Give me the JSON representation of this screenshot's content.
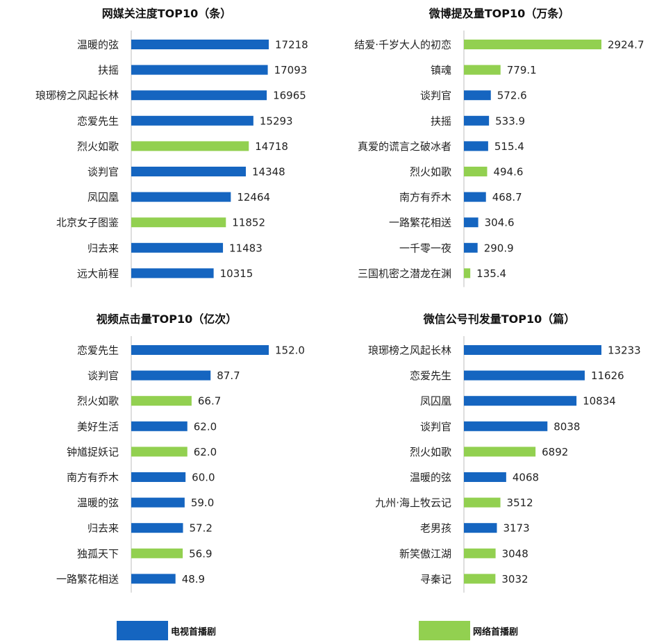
{
  "colors": {
    "tv": "#1565c0",
    "web": "#92d050",
    "axis": "#bdbdbd"
  },
  "legend": [
    {
      "key": "tv",
      "label": "电视首播剧",
      "color": "#1565c0"
    },
    {
      "key": "web",
      "label": "网络首播剧",
      "color": "#92d050"
    }
  ],
  "chart_data": [
    {
      "type": "bar",
      "orientation": "horizontal",
      "title": "网媒关注度TOP10（条）",
      "categories": [
        "温暖的弦",
        "扶摇",
        "琅琊榜之风起长林",
        "恋爱先生",
        "烈火如歌",
        "谈判官",
        "凤囚凰",
        "北京女子图鉴",
        "归去来",
        "远大前程"
      ],
      "values": [
        17218,
        17093,
        16965,
        15293,
        14718,
        14348,
        12464,
        11852,
        11483,
        10315
      ],
      "value_labels": [
        "17218",
        "17093",
        "16965",
        "15293",
        "14718",
        "14348",
        "12464",
        "11852",
        "11483",
        "10315"
      ],
      "types": [
        "tv",
        "tv",
        "tv",
        "tv",
        "web",
        "tv",
        "tv",
        "web",
        "tv",
        "tv"
      ],
      "xlim": [
        0,
        17218
      ],
      "grid": false
    },
    {
      "type": "bar",
      "orientation": "horizontal",
      "title": "微博提及量TOP10（万条）",
      "categories": [
        "结爱·千岁大人的初恋",
        "镇魂",
        "谈判官",
        "扶摇",
        "真爱的谎言之破冰者",
        "烈火如歌",
        "南方有乔木",
        "一路繁花相送",
        "一千零一夜",
        "三国机密之潜龙在渊"
      ],
      "values": [
        2924.7,
        779.1,
        572.6,
        533.9,
        515.4,
        494.6,
        468.7,
        304.6,
        290.9,
        135.4
      ],
      "value_labels": [
        "2924.7",
        "779.1",
        "572.6",
        "533.9",
        "515.4",
        "494.6",
        "468.7",
        "304.6",
        "290.9",
        "135.4"
      ],
      "types": [
        "web",
        "web",
        "tv",
        "tv",
        "tv",
        "web",
        "tv",
        "tv",
        "tv",
        "web"
      ],
      "xlim": [
        0,
        2924.7
      ],
      "grid": false
    },
    {
      "type": "bar",
      "orientation": "horizontal",
      "title": "视频点击量TOP10（亿次）",
      "categories": [
        "恋爱先生",
        "谈判官",
        "烈火如歌",
        "美好生活",
        "钟馗捉妖记",
        "南方有乔木",
        "温暖的弦",
        "归去来",
        "独孤天下",
        "一路繁花相送"
      ],
      "values": [
        152.0,
        87.7,
        66.7,
        62.0,
        62.0,
        60.0,
        59.0,
        57.2,
        56.9,
        48.9
      ],
      "value_labels": [
        "152.0",
        "87.7",
        "66.7",
        "62.0",
        "62.0",
        "60.0",
        "59.0",
        "57.2",
        "56.9",
        "48.9"
      ],
      "types": [
        "tv",
        "tv",
        "web",
        "tv",
        "web",
        "tv",
        "tv",
        "tv",
        "web",
        "tv"
      ],
      "xlim": [
        0,
        152.0
      ],
      "grid": false
    },
    {
      "type": "bar",
      "orientation": "horizontal",
      "title": "微信公号刊发量TOP10（篇）",
      "categories": [
        "琅琊榜之风起长林",
        "恋爱先生",
        "凤囚凰",
        "谈判官",
        "烈火如歌",
        "温暖的弦",
        "九州·海上牧云记",
        "老男孩",
        "新笑傲江湖",
        "寻秦记"
      ],
      "values": [
        13233,
        11626,
        10834,
        8038,
        6892,
        4068,
        3512,
        3173,
        3048,
        3032
      ],
      "value_labels": [
        "13233",
        "11626",
        "10834",
        "8038",
        "6892",
        "4068",
        "3512",
        "3173",
        "3048",
        "3032"
      ],
      "types": [
        "tv",
        "tv",
        "tv",
        "tv",
        "web",
        "tv",
        "web",
        "tv",
        "web",
        "web"
      ],
      "xlim": [
        0,
        13233
      ],
      "grid": false
    }
  ]
}
